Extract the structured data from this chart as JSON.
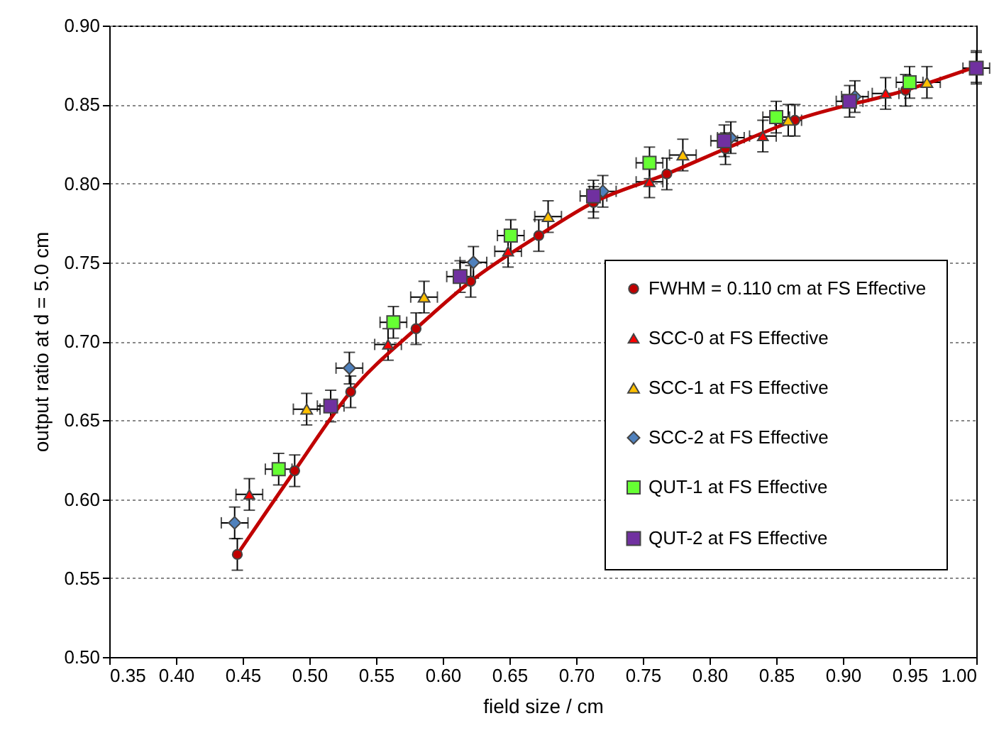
{
  "chart_data": {
    "type": "scatter",
    "xlabel": "field size / cm",
    "ylabel": "output ratio at d = 5.0 cm",
    "xlim": [
      0.35,
      1.0
    ],
    "ylim": [
      0.5,
      0.9
    ],
    "xticks": [
      0.35,
      {
        "value": 0.4,
        "label": "0.40"
      },
      0.45,
      {
        "value": 0.5,
        "label": "0.50"
      },
      0.55,
      {
        "value": 0.6,
        "label": "0.60"
      },
      0.65,
      {
        "value": 0.7,
        "label": "0.70"
      },
      0.75,
      {
        "value": 0.8,
        "label": "0.80"
      },
      0.85,
      {
        "value": 0.9,
        "label": "0.90"
      },
      0.95,
      {
        "value": 1.0,
        "label": "1.00"
      }
    ],
    "yticks": [
      {
        "value": 0.5,
        "label": "0.50"
      },
      0.55,
      {
        "value": 0.6,
        "label": "0.60"
      },
      0.65,
      {
        "value": 0.7,
        "label": "0.70"
      },
      0.75,
      {
        "value": 0.8,
        "label": "0.80"
      },
      0.85,
      {
        "value": 0.9,
        "label": "0.90"
      }
    ],
    "grid": "y",
    "legend": "bottom right",
    "series": [
      {
        "name": "FWHM = 0.110 cm at FS Effective",
        "type": "line",
        "marker": "circle",
        "line_style": "solid",
        "color": "#c00000",
        "x": [
          0.446,
          0.489,
          0.531,
          0.58,
          0.621,
          0.672,
          0.713,
          0.768,
          0.812,
          0.864,
          0.947,
          1.0
        ],
        "values": [
          0.565,
          0.618,
          0.668,
          0.708,
          0.738,
          0.767,
          0.788,
          0.806,
          0.822,
          0.84,
          0.859,
          0.874
        ],
        "errors": [
          0.01,
          0.01,
          0.01,
          0.01,
          0.01,
          0.01,
          0.01,
          0.01,
          0.01,
          0.01,
          0.01,
          0.01
        ]
      },
      {
        "name": "SCC-0 at FS Effective",
        "marker": "triangle",
        "color": "#ff0000",
        "x": [
          0.455,
          0.559,
          0.649,
          0.755,
          0.84,
          0.932
        ],
        "values": [
          0.603,
          0.698,
          0.757,
          0.801,
          0.83,
          0.857
        ],
        "errors": [
          0.01,
          0.01,
          0.01,
          0.01,
          0.01,
          0.01
        ],
        "xerrors": [
          0.01,
          0.01,
          0.01,
          0.01,
          0.01,
          0.01
        ]
      },
      {
        "name": "SCC-1 at FS Effective",
        "marker": "triangle",
        "color": "#ffc000",
        "x": [
          0.498,
          0.586,
          0.679,
          0.78,
          0.859,
          0.963
        ],
        "values": [
          0.657,
          0.728,
          0.779,
          0.818,
          0.84,
          0.864
        ],
        "errors": [
          0.01,
          0.01,
          0.01,
          0.01,
          0.01,
          0.01
        ],
        "xerrors": [
          0.01,
          0.01,
          0.01,
          0.01,
          0.01,
          0.01
        ]
      },
      {
        "name": "SCC-2 at FS Effective",
        "marker": "diamond",
        "color": "#4f81bd",
        "x": [
          0.444,
          0.53,
          0.623,
          0.72,
          0.816,
          0.909
        ],
        "values": [
          0.585,
          0.683,
          0.75,
          0.795,
          0.829,
          0.855
        ],
        "errors": [
          0.01,
          0.01,
          0.01,
          0.01,
          0.01,
          0.01
        ],
        "xerrors": [
          0.01,
          0.01,
          0.01,
          0.01,
          0.01,
          0.01
        ]
      },
      {
        "name": "QUT-1 at FS Effective",
        "marker": "square",
        "color": "#66ff33",
        "x": [
          0.477,
          0.563,
          0.651,
          0.755,
          0.85,
          0.95
        ],
        "values": [
          0.619,
          0.712,
          0.767,
          0.813,
          0.842,
          0.864
        ],
        "errors": [
          0.01,
          0.01,
          0.01,
          0.01,
          0.01,
          0.01
        ],
        "xerrors": [
          0.01,
          0.01,
          0.01,
          0.01,
          0.01,
          0.01
        ]
      },
      {
        "name": "QUT-2 at FS Effective",
        "marker": "square",
        "color": "#7030a0",
        "x": [
          0.516,
          0.613,
          0.713,
          0.811,
          0.905,
          1.0
        ],
        "values": [
          0.659,
          0.741,
          0.792,
          0.827,
          0.852,
          0.873
        ],
        "errors": [
          0.01,
          0.01,
          0.01,
          0.01,
          0.01,
          0.01
        ],
        "xerrors": [
          0.01,
          0.01,
          0.01,
          0.01,
          0.01,
          0.01
        ]
      }
    ]
  }
}
